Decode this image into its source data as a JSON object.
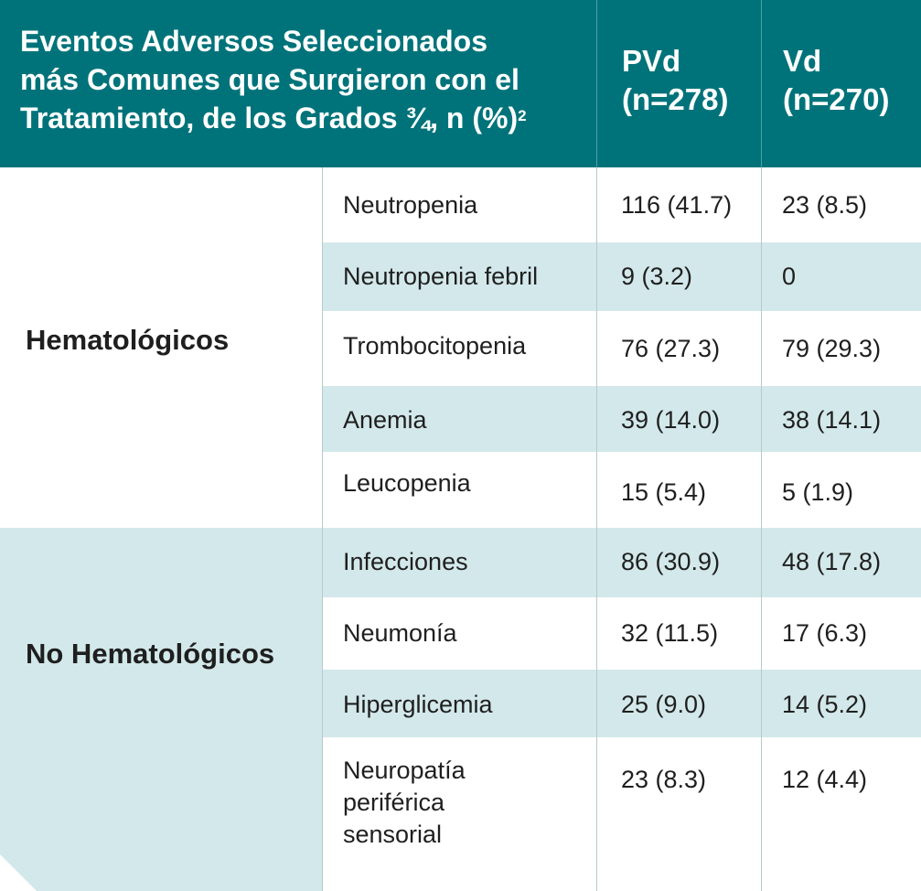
{
  "header": {
    "title_line1": "Eventos Adversos Seleccionados",
    "title_line2": "más Comunes que Surgieron con el",
    "title_line3": "Tratamiento, de los Grados ¾, n (%)",
    "title_sup": "2",
    "col_pvd_name": "PVd",
    "col_pvd_n": "(n=278)",
    "col_vd_name": "Vd",
    "col_vd_n": "(n=270)"
  },
  "groups": {
    "hematologic": "Hematológicos",
    "non_hematologic": "No Hematológicos"
  },
  "rows": [
    {
      "event": "Neutropenia",
      "pvd": "116 (41.7)",
      "vd": "23 (8.5)"
    },
    {
      "event": "Neutropenia febril",
      "pvd": "9 (3.2)",
      "vd": "0"
    },
    {
      "event": "Trombocitopenia",
      "pvd": "76 (27.3)",
      "vd": "79 (29.3)"
    },
    {
      "event": "Anemia",
      "pvd": "39 (14.0)",
      "vd": "38 (14.1)"
    },
    {
      "event": "Leucopenia",
      "pvd": "15 (5.4)",
      "vd": "5 (1.9)"
    },
    {
      "event": "Infecciones",
      "pvd": "86 (30.9)",
      "vd": "48 (17.8)"
    },
    {
      "event": "Neumonía",
      "pvd": "32 (11.5)",
      "vd": "17 (6.3)"
    },
    {
      "event": "Hiperglicemia",
      "pvd": "25 (9.0)",
      "vd": "14 (5.2)"
    },
    {
      "event_line1": "Neuropatía",
      "event_line2": "periférica",
      "event_line3": "sensorial",
      "pvd": "23 (8.3)",
      "vd": "12 (4.4)"
    }
  ],
  "colors": {
    "header_bg": "#00737a",
    "row_shade": "#d3e8ea"
  }
}
